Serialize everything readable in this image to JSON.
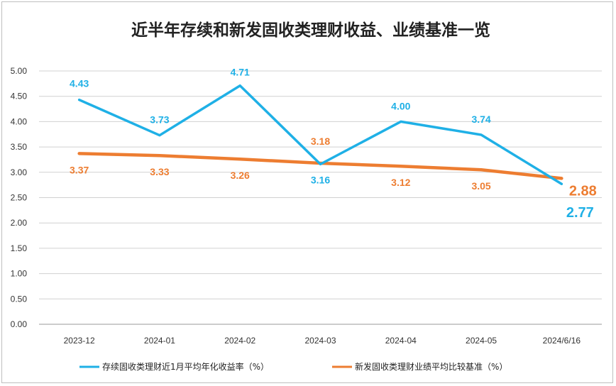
{
  "chart_data": {
    "type": "line",
    "title": "近半年存续和新发固收类理财收益、业绩基准一览",
    "categories": [
      "2023-12",
      "2024-01",
      "2024-02",
      "2024-03",
      "2024-04",
      "2024-05",
      "2024/6/16"
    ],
    "ylim": [
      0,
      5
    ],
    "yticks": [
      "0.00",
      "0.50",
      "1.00",
      "1.50",
      "2.00",
      "2.50",
      "3.00",
      "3.50",
      "4.00",
      "4.50",
      "5.00"
    ],
    "grid": true,
    "legend_position": "bottom",
    "series": [
      {
        "name": "存续固收类理财近1月平均年化收益率（%）",
        "color": "#1fb0e6",
        "values": [
          4.43,
          3.73,
          4.71,
          3.16,
          4.0,
          3.74,
          2.77
        ],
        "labels": [
          "4.43",
          "3.73",
          "4.71",
          "3.16",
          "4.00",
          "3.74",
          "2.77"
        ]
      },
      {
        "name": "新发固收类理财业绩平均比较基准（%）",
        "color": "#ed7d31",
        "values": [
          3.37,
          3.33,
          3.26,
          3.18,
          3.12,
          3.05,
          2.88
        ],
        "labels": [
          "3.37",
          "3.33",
          "3.26",
          "3.18",
          "3.12",
          "3.05",
          "2.88"
        ]
      }
    ]
  }
}
